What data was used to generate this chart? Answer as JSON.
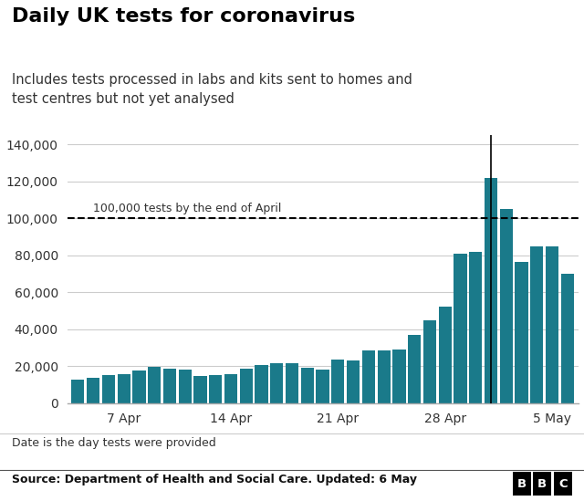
{
  "title": "Daily UK tests for coronavirus",
  "subtitle": "Includes tests processed in labs and kits sent to homes and\ntest centres but not yet analysed",
  "footnote": "Date is the day tests were provided",
  "source": "Source: Department of Health and Social Care. Updated: 6 May",
  "bar_color": "#1a7a8a",
  "background_color": "#ffffff",
  "dashed_line_y": 100000,
  "dashed_line_label": "100,000 tests by the end of April",
  "vertical_line_x_index": 27,
  "ylim": [
    0,
    145000
  ],
  "yticks": [
    0,
    20000,
    40000,
    60000,
    80000,
    100000,
    120000,
    140000
  ],
  "xtick_labels": [
    "7 Apr",
    "14 Apr",
    "21 Apr",
    "28 Apr",
    "5 May"
  ],
  "xtick_positions": [
    3,
    10,
    17,
    24,
    31
  ],
  "values": [
    13000,
    14000,
    15500,
    16000,
    17500,
    19500,
    18500,
    18000,
    15000,
    15500,
    16000,
    18500,
    20500,
    21500,
    21500,
    19000,
    18000,
    23500,
    23000,
    28500,
    28500,
    29000,
    37000,
    45000,
    52500,
    81000,
    82000,
    122000,
    105000,
    76500,
    85000,
    85000,
    70000
  ]
}
